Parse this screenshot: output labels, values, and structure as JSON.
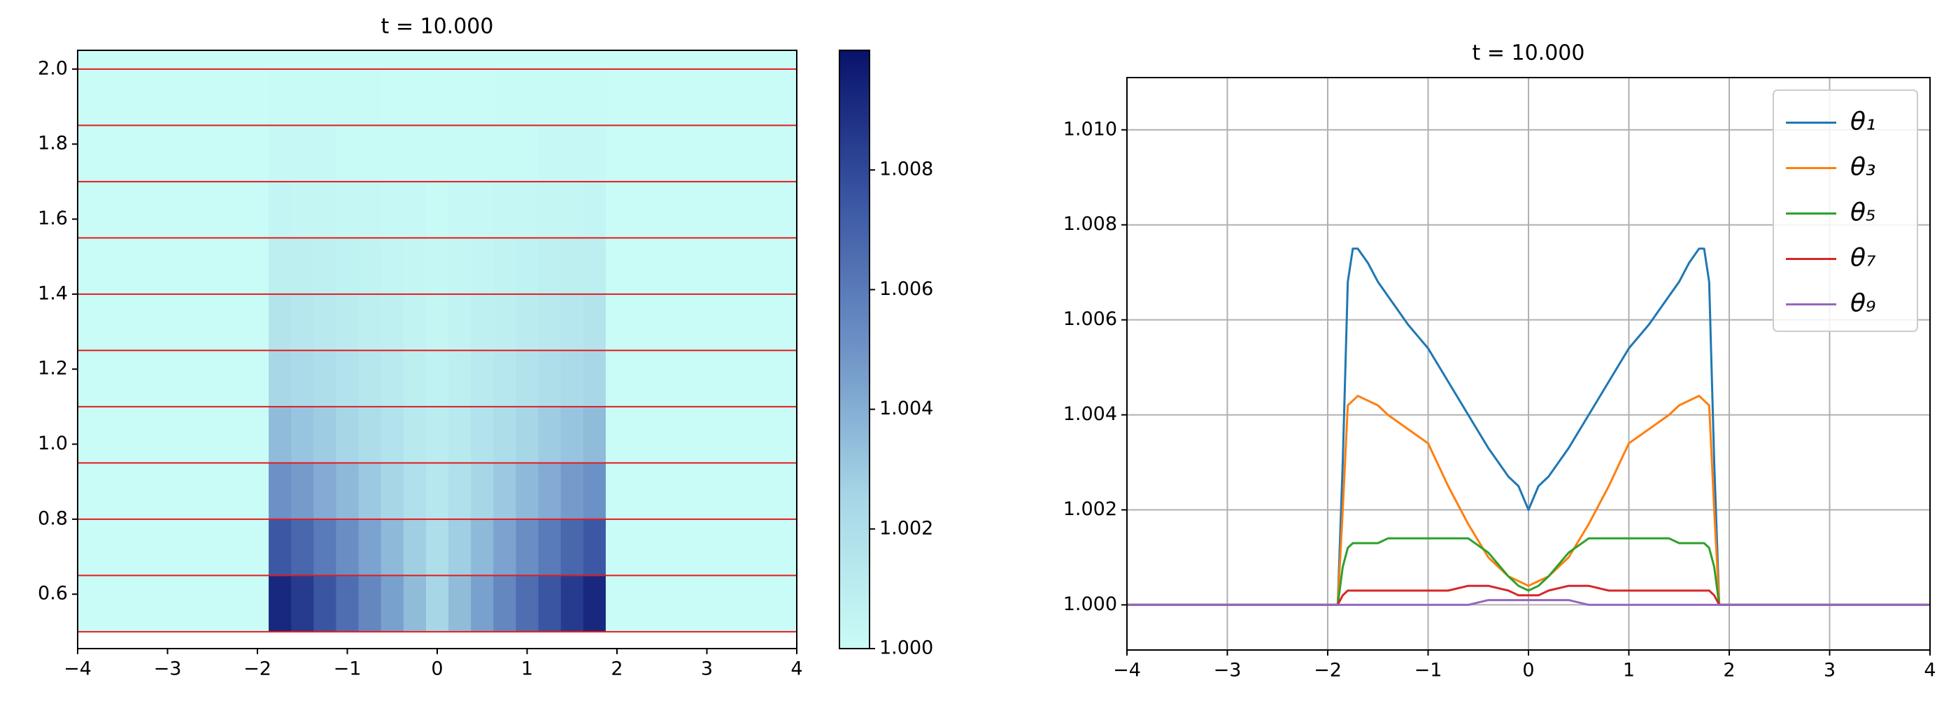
{
  "chart_data": [
    {
      "type": "heatmap",
      "title": "t = 10.000",
      "x_edges": [
        -4,
        -1.875,
        -1.625,
        -1.375,
        -1.125,
        -0.875,
        -0.625,
        -0.375,
        -0.125,
        0.125,
        0.375,
        0.625,
        0.875,
        1.125,
        1.375,
        1.625,
        1.875,
        4
      ],
      "y_edges": [
        0.5,
        0.65,
        0.8,
        0.95,
        1.1,
        1.25,
        1.4,
        1.55,
        1.7,
        1.85,
        2.0
      ],
      "z": [
        [
          1.0,
          1.0092,
          1.0085,
          1.0075,
          1.0065,
          1.0055,
          1.0045,
          1.0035,
          1.0025,
          1.0035,
          1.0045,
          1.0055,
          1.0065,
          1.0075,
          1.0085,
          1.0092,
          1.0
        ],
        [
          1.0,
          1.0074,
          1.0068,
          1.006,
          1.0052,
          1.0044,
          1.0036,
          1.0028,
          1.002,
          1.0028,
          1.0036,
          1.0044,
          1.0052,
          1.006,
          1.0068,
          1.0074,
          1.0
        ],
        [
          1.0,
          1.0051,
          1.0047,
          1.0041,
          1.0036,
          1.003,
          1.0025,
          1.0019,
          1.0014,
          1.0019,
          1.0025,
          1.003,
          1.0036,
          1.0041,
          1.0047,
          1.0051,
          1.0
        ],
        [
          1.0,
          1.0035,
          1.0032,
          1.0029,
          1.0025,
          1.0021,
          1.0017,
          1.0013,
          1.001,
          1.0013,
          1.0017,
          1.0021,
          1.0025,
          1.0029,
          1.0032,
          1.0035,
          1.0
        ],
        [
          1.0,
          1.0024,
          1.0022,
          1.002,
          1.0017,
          1.0014,
          1.0012,
          1.0009,
          1.0007,
          1.0009,
          1.0012,
          1.0014,
          1.0017,
          1.002,
          1.0022,
          1.0024,
          1.0
        ],
        [
          1.0,
          1.0016,
          1.0014,
          1.0013,
          1.0011,
          1.0009,
          1.0008,
          1.0006,
          1.0004,
          1.0006,
          1.0008,
          1.0009,
          1.0011,
          1.0013,
          1.0014,
          1.0016,
          1.0
        ],
        [
          1.0,
          1.0009,
          1.0009,
          1.0008,
          1.0007,
          1.0006,
          1.0005,
          1.0004,
          1.0003,
          1.0004,
          1.0005,
          1.0006,
          1.0007,
          1.0008,
          1.0009,
          1.0009,
          1.0
        ],
        [
          1.0,
          1.0005,
          1.0004,
          1.0004,
          1.0003,
          1.0003,
          1.0002,
          1.0002,
          1.0001,
          1.0002,
          1.0002,
          1.0003,
          1.0003,
          1.0004,
          1.0004,
          1.0005,
          1.0
        ],
        [
          1.0,
          1.0002,
          1.0002,
          1.0002,
          1.0001,
          1.0001,
          1.0001,
          1.0001,
          1.0001,
          1.0001,
          1.0001,
          1.0001,
          1.0001,
          1.0002,
          1.0002,
          1.0002,
          1.0
        ],
        [
          1.0,
          1.0001,
          1.0001,
          1.0001,
          1.0001,
          1.0001,
          1.0,
          1.0,
          1.0,
          1.0,
          1.0,
          1.0001,
          1.0001,
          1.0001,
          1.0001,
          1.0001,
          1.0
        ]
      ],
      "layer_line_color": "#e41a1c",
      "xlim": [
        -4,
        4
      ],
      "ylim": [
        0.455,
        2.05
      ],
      "xticks": [
        {
          "value": -4,
          "label": "−4"
        },
        {
          "value": -3,
          "label": "−3"
        },
        {
          "value": -2,
          "label": "−2"
        },
        {
          "value": -1,
          "label": "−1"
        },
        0,
        1,
        2,
        3,
        4
      ],
      "yticks": [
        0.6,
        0.8,
        {
          "value": 1.0,
          "label": "1.0"
        },
        1.2,
        1.4,
        1.6,
        1.8,
        {
          "value": 2.0,
          "label": "2.0"
        }
      ],
      "colorbar": {
        "clim": [
          1.0,
          1.01
        ],
        "colormap": [
          "#c9fcf6",
          "#a7d7e7",
          "#6e93c7",
          "#3a56a3",
          "#08126c"
        ],
        "ticks": [
          {
            "value": 1.0,
            "label": "1.000"
          },
          {
            "value": 1.002,
            "label": "1.002"
          },
          {
            "value": 1.004,
            "label": "1.004"
          },
          {
            "value": 1.006,
            "label": "1.006"
          },
          {
            "value": 1.008,
            "label": "1.008"
          }
        ]
      }
    },
    {
      "type": "line",
      "title": "t = 10.000",
      "x": [
        -4,
        -1.9,
        -1.85,
        -1.8,
        -1.75,
        -1.7,
        -1.6,
        -1.5,
        -1.4,
        -1.2,
        -1.0,
        -0.8,
        -0.6,
        -0.4,
        -0.2,
        -0.1,
        0,
        0.1,
        0.2,
        0.4,
        0.6,
        0.8,
        1.0,
        1.2,
        1.4,
        1.5,
        1.6,
        1.7,
        1.75,
        1.8,
        1.85,
        1.9,
        4
      ],
      "series": [
        {
          "name": "θ₁",
          "color": "#1f77b4",
          "values": [
            1.0,
            1.0,
            1.003,
            1.0068,
            1.0075,
            1.0075,
            1.0072,
            1.0068,
            1.0065,
            1.0059,
            1.0054,
            1.0047,
            1.004,
            1.0033,
            1.0027,
            1.0025,
            1.002,
            1.0025,
            1.0027,
            1.0033,
            1.004,
            1.0047,
            1.0054,
            1.0059,
            1.0065,
            1.0068,
            1.0072,
            1.0075,
            1.0075,
            1.0068,
            1.003,
            1.0,
            1.0
          ]
        },
        {
          "name": "θ₃",
          "color": "#ff7f0e",
          "values": [
            1.0,
            1.0,
            1.002,
            1.0042,
            1.0043,
            1.0044,
            1.0043,
            1.0042,
            1.004,
            1.0037,
            1.0034,
            1.0025,
            1.0017,
            1.001,
            1.0006,
            1.0005,
            1.0004,
            1.0005,
            1.0006,
            1.001,
            1.0017,
            1.0025,
            1.0034,
            1.0037,
            1.004,
            1.0042,
            1.0043,
            1.0044,
            1.0043,
            1.0042,
            1.002,
            1.0,
            1.0
          ]
        },
        {
          "name": "θ₅",
          "color": "#2ca02c",
          "values": [
            1.0,
            1.0,
            1.0008,
            1.0012,
            1.0013,
            1.0013,
            1.0013,
            1.0013,
            1.0014,
            1.0014,
            1.0014,
            1.0014,
            1.0014,
            1.0011,
            1.0006,
            1.0004,
            1.0003,
            1.0004,
            1.0006,
            1.0011,
            1.0014,
            1.0014,
            1.0014,
            1.0014,
            1.0014,
            1.0013,
            1.0013,
            1.0013,
            1.0013,
            1.0012,
            1.0008,
            1.0,
            1.0
          ]
        },
        {
          "name": "θ₇",
          "color": "#d62728",
          "values": [
            1.0,
            1.0,
            1.0002,
            1.0003,
            1.0003,
            1.0003,
            1.0003,
            1.0003,
            1.0003,
            1.0003,
            1.0003,
            1.0003,
            1.0004,
            1.0004,
            1.0003,
            1.0002,
            1.0002,
            1.0002,
            1.0003,
            1.0004,
            1.0004,
            1.0003,
            1.0003,
            1.0003,
            1.0003,
            1.0003,
            1.0003,
            1.0003,
            1.0003,
            1.0003,
            1.0002,
            1.0,
            1.0
          ]
        },
        {
          "name": "θ₉",
          "color": "#9467bd",
          "values": [
            1.0,
            1.0,
            1.0,
            1.0,
            1.0,
            1.0,
            1.0,
            1.0,
            1.0,
            1.0,
            1.0,
            1.0,
            1.0,
            1.0001,
            1.0001,
            1.0001,
            1.0001,
            1.0001,
            1.0001,
            1.0001,
            1.0,
            1.0,
            1.0,
            1.0,
            1.0,
            1.0,
            1.0,
            1.0,
            1.0,
            1.0,
            1.0,
            1.0,
            1.0
          ]
        }
      ],
      "xlim": [
        -4,
        4
      ],
      "ylim": [
        0.99905,
        1.0111
      ],
      "xticks": [
        {
          "value": -4,
          "label": "−4"
        },
        {
          "value": -3,
          "label": "−3"
        },
        {
          "value": -2,
          "label": "−2"
        },
        {
          "value": -1,
          "label": "−1"
        },
        0,
        1,
        2,
        3,
        4
      ],
      "yticks": [
        {
          "value": 1.0,
          "label": "1.000"
        },
        {
          "value": 1.002,
          "label": "1.002"
        },
        {
          "value": 1.004,
          "label": "1.004"
        },
        {
          "value": 1.006,
          "label": "1.006"
        },
        {
          "value": 1.008,
          "label": "1.008"
        },
        {
          "value": 1.01,
          "label": "1.010"
        }
      ],
      "grid": true,
      "legend": "upper right"
    }
  ]
}
